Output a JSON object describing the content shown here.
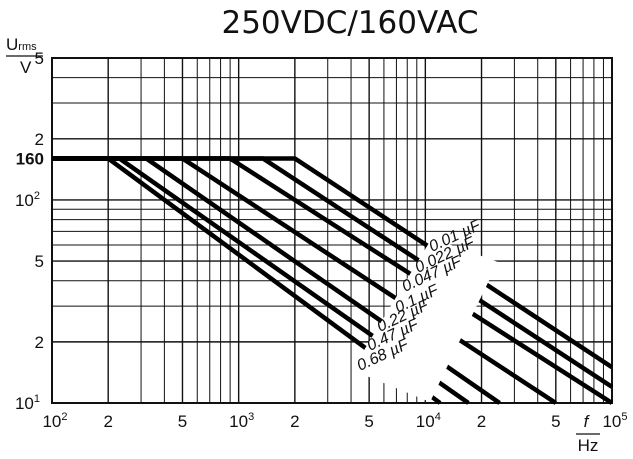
{
  "chart_data": {
    "type": "line",
    "title": "250VDC/160VAC",
    "xlabel_top": "f",
    "xlabel_bottom": "Hz",
    "ylabel_main": "U",
    "ylabel_sub": "rms",
    "ylabel_unit": "V",
    "x_scale": "log",
    "y_scale": "log",
    "xlim": [
      100,
      100000
    ],
    "ylim": [
      10,
      500
    ],
    "grid": true,
    "x_ticks": [
      {
        "value": 100,
        "base": "10",
        "exp": "2"
      },
      {
        "value": 200,
        "base": "2",
        "exp": ""
      },
      {
        "value": 500,
        "base": "5",
        "exp": ""
      },
      {
        "value": 1000,
        "base": "10",
        "exp": "3"
      },
      {
        "value": 2000,
        "base": "2",
        "exp": ""
      },
      {
        "value": 5000,
        "base": "5",
        "exp": ""
      },
      {
        "value": 10000,
        "base": "10",
        "exp": "4"
      },
      {
        "value": 20000,
        "base": "2",
        "exp": ""
      },
      {
        "value": 50000,
        "base": "5",
        "exp": ""
      },
      {
        "value": 100000,
        "base": "10",
        "exp": "5"
      }
    ],
    "y_ticks": [
      {
        "value": 10,
        "base": "10",
        "exp": "1",
        "bold": false
      },
      {
        "value": 20,
        "base": "2",
        "exp": "",
        "bold": false
      },
      {
        "value": 50,
        "base": "5",
        "exp": "",
        "bold": false
      },
      {
        "value": 100,
        "base": "10",
        "exp": "2",
        "bold": false
      },
      {
        "value": 160,
        "base": "160",
        "exp": "",
        "bold": true
      },
      {
        "value": 200,
        "base": "2",
        "exp": "",
        "bold": false
      },
      {
        "value": 500,
        "base": "5",
        "exp": "",
        "bold": false
      }
    ],
    "series": [
      {
        "name": "0.01 µF",
        "x": [
          100,
          2000,
          100000
        ],
        "y": [
          160,
          160,
          15
        ]
      },
      {
        "name": "0.022 µF",
        "x": [
          100,
          1350,
          100000
        ],
        "y": [
          160,
          160,
          12
        ]
      },
      {
        "name": "0.047 µF",
        "x": [
          100,
          900,
          100000
        ],
        "y": [
          160,
          160,
          10
        ]
      },
      {
        "name": "0.1 µF",
        "x": [
          100,
          500,
          50000
        ],
        "y": [
          160,
          160,
          10
        ]
      },
      {
        "name": "0.22 µF",
        "x": [
          100,
          320,
          25000
        ],
        "y": [
          160,
          160,
          10
        ]
      },
      {
        "name": "0.47 µF",
        "x": [
          100,
          230,
          17000
        ],
        "y": [
          160,
          160,
          10
        ]
      },
      {
        "name": "0.68 µF",
        "x": [
          100,
          200,
          12000
        ],
        "y": [
          160,
          160,
          10
        ]
      }
    ]
  }
}
